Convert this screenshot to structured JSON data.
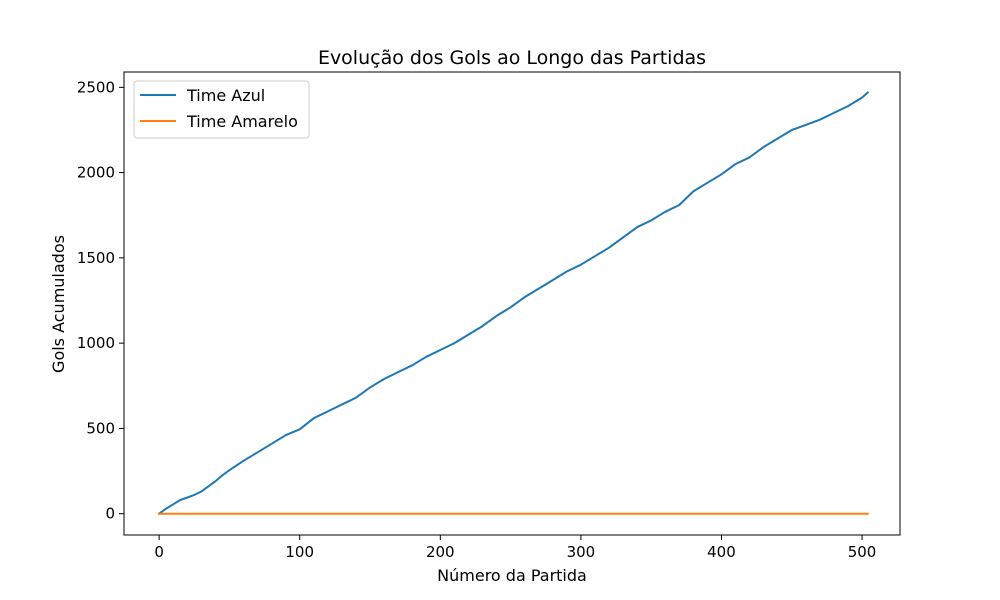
{
  "chart_data": {
    "type": "line",
    "title": "Evolução dos Gols ao Longo das Partidas",
    "xlabel": "Número da Partida",
    "ylabel": "Gols Acumulados",
    "xlim": [
      -25,
      527
    ],
    "ylim": [
      -125,
      2590
    ],
    "x_ticks": [
      0,
      100,
      200,
      300,
      400,
      500
    ],
    "y_ticks": [
      0,
      500,
      1000,
      1500,
      2000,
      2500
    ],
    "grid": false,
    "legend": "top-left",
    "series": [
      {
        "name": "Time Azul",
        "color": "#1f77b4",
        "x": [
          0,
          5,
          10,
          15,
          20,
          25,
          30,
          35,
          40,
          45,
          50,
          60,
          70,
          80,
          90,
          100,
          110,
          120,
          130,
          140,
          150,
          160,
          170,
          180,
          190,
          200,
          210,
          220,
          230,
          240,
          250,
          260,
          270,
          280,
          290,
          300,
          310,
          320,
          330,
          340,
          350,
          360,
          370,
          380,
          390,
          400,
          410,
          420,
          430,
          440,
          450,
          460,
          470,
          480,
          490,
          500,
          504
        ],
        "values": [
          0,
          30,
          55,
          80,
          95,
          110,
          130,
          160,
          190,
          225,
          255,
          310,
          360,
          410,
          460,
          495,
          560,
          600,
          640,
          680,
          740,
          790,
          830,
          870,
          920,
          960,
          1000,
          1050,
          1100,
          1160,
          1210,
          1270,
          1320,
          1370,
          1420,
          1460,
          1510,
          1560,
          1620,
          1680,
          1720,
          1770,
          1810,
          1890,
          1940,
          1990,
          2050,
          2090,
          2150,
          2200,
          2250,
          2280,
          2310,
          2350,
          2390,
          2440,
          2470
        ]
      },
      {
        "name": "Time Amarelo",
        "color": "#ff7f0e",
        "x": [
          0,
          504
        ],
        "values": [
          0,
          0
        ]
      }
    ]
  }
}
